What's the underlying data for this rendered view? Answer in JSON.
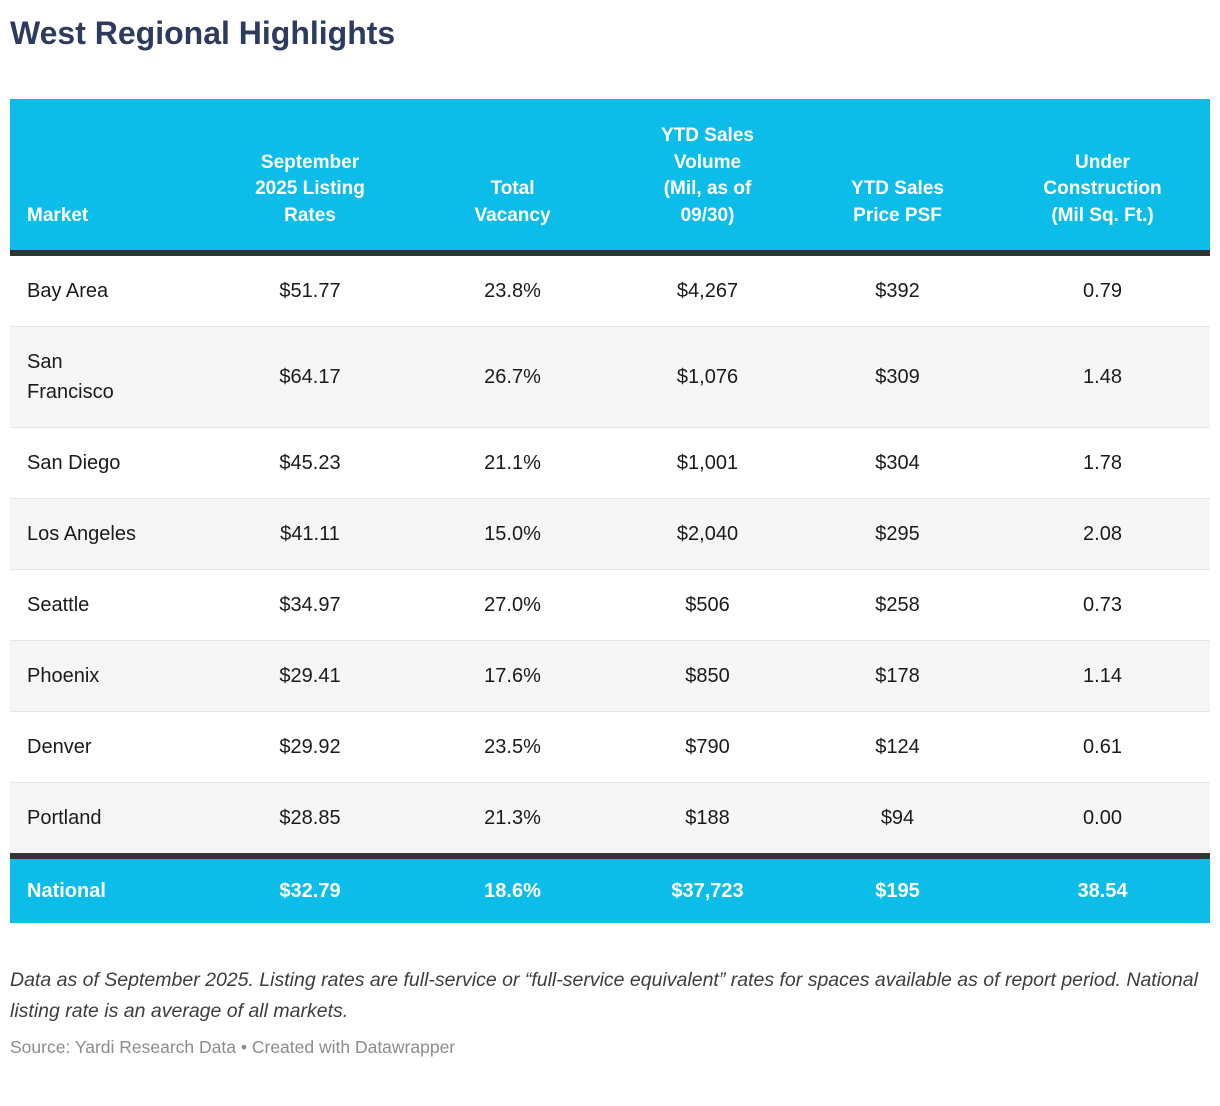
{
  "title": "West Regional Highlights",
  "chart_data": {
    "type": "table",
    "title": "West Regional Highlights",
    "columns": [
      "Market",
      "September\n2025 Listing\nRates",
      "Total\nVacancy",
      "YTD Sales\nVolume\n(Mil, as of\n09/30)",
      "YTD Sales\nPrice PSF",
      "Under\nConstruction\n(Mil Sq. Ft.)"
    ],
    "rows": [
      [
        "Bay Area",
        "$51.77",
        "23.8%",
        "$4,267",
        "$392",
        "0.79"
      ],
      [
        "San Francisco",
        "$64.17",
        "26.7%",
        "$1,076",
        "$309",
        "1.48"
      ],
      [
        "San Diego",
        "$45.23",
        "21.1%",
        "$1,001",
        "$304",
        "1.78"
      ],
      [
        "Los Angeles",
        "$41.11",
        "15.0%",
        "$2,040",
        "$295",
        "2.08"
      ],
      [
        "Seattle",
        "$34.97",
        "27.0%",
        "$506",
        "$258",
        "0.73"
      ],
      [
        "Phoenix",
        "$29.41",
        "17.6%",
        "$850",
        "$178",
        "1.14"
      ],
      [
        "Denver",
        "$29.92",
        "23.5%",
        "$790",
        "$124",
        "0.61"
      ],
      [
        "Portland",
        "$28.85",
        "21.3%",
        "$188",
        "$94",
        "0.00"
      ]
    ],
    "national_row": [
      "National",
      "$32.79",
      "18.6%",
      "$37,723",
      "$195",
      "38.54"
    ],
    "notes": "Data as of September 2025. Listing rates are full-service or “full-service equivalent” rates for spaces available as of report period. National listing rate is an average of all markets.",
    "source": "Source: Yardi Research Data • Created with Datawrapper"
  },
  "ui": {
    "colors": {
      "accent": "#0dbde9",
      "title": "#2d3c5e",
      "dark_rule": "#333333",
      "alt_row": "#f6f6f6",
      "header_text": "#ffffff"
    }
  }
}
